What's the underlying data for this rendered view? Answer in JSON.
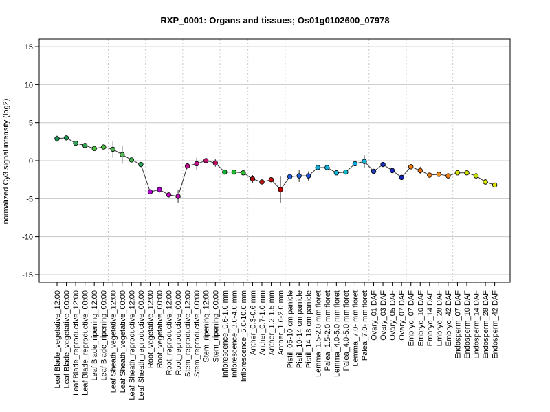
{
  "chart_data": {
    "type": "line",
    "title": "RXP_0001: Organs and tissues; Os01g0102600_07978",
    "xlabel": "",
    "ylabel": "normalized Cy3 signal intensity (log2)",
    "ylim": [
      -16,
      16
    ],
    "yticks": [
      -15,
      -10,
      -5,
      0,
      5,
      10,
      15
    ],
    "grid": true,
    "categories": [
      "Leaf Blade_vegetative_12:00",
      "Leaf Blade_vegetative_00:00",
      "Leaf Blade_reproductive_12:00",
      "Leaf Blade_reproductive_00:00",
      "Leaf Blade_ripening_12:00",
      "Leaf Blade_ripening_00:00",
      "Leaf Sheath_vegetative_12:00",
      "Leaf Sheath_vegetative_00:00",
      "Leaf Sheath_reproductive_12:00",
      "Leaf Sheath_reproductive_00:00",
      "Root_vegetative_12:00",
      "Root_vegetative_00:00",
      "Root_reproductive_12:00",
      "Root_reproductive_00:00",
      "Stem_reproductive_12:00",
      "Stem_reproductive_00:00",
      "Stem_ripening_12:00",
      "Stem_ripening_00:00",
      "Inflorescence_0.6-1.0 mm",
      "Inflorescence_3.0-4.0 mm",
      "Inflorescence_5.0-10.0 mm",
      "Anther_0.3-0.6 mm",
      "Anther_0.7-1.0 mm",
      "Anther_1.2-1.5 mm",
      "Anther_1.6-2.0 mm",
      "Pistil_05-10 cm panicle",
      "Pistil_10-14 cm panicle",
      "Pistil_14-18 cm panicle",
      "Lemma_1.5-2.0 mm floret",
      "Palea_1.5-2.0 mm floret",
      "Lemma_4.0-5.0 mm floret",
      "Palea_4.0-5.0 mm floret",
      "Lemma_7.0- mm floret",
      "Palea_7.0- mm floret",
      "Ovary_01 DAF",
      "Ovary_03 DAF",
      "Ovary_05 DAF",
      "Ovary_07 DAF",
      "Embryo_07 DAF",
      "Embryo_10 DAF",
      "Embryo_14 DAF",
      "Embryo_28 DAF",
      "Embryo_42 DAF",
      "Endosperm_07 DAF",
      "Endosperm_10 DAF",
      "Endosperm_14 DAF",
      "Endosperm_28 DAF",
      "Endosperm_42 DAF"
    ],
    "values": [
      2.9,
      3.0,
      2.3,
      2.0,
      1.6,
      1.8,
      1.5,
      0.8,
      0.1,
      -0.5,
      -4.1,
      -3.8,
      -4.5,
      -4.7,
      -0.7,
      -0.4,
      0.0,
      -0.3,
      -1.5,
      -1.5,
      -1.6,
      -2.4,
      -2.8,
      -2.5,
      -3.8,
      -2.1,
      -2.0,
      -2.0,
      -0.9,
      -0.9,
      -1.6,
      -1.5,
      -0.4,
      -0.1,
      -1.4,
      -0.5,
      -1.3,
      -2.2,
      -0.8,
      -1.3,
      -1.9,
      -1.8,
      -2.0,
      -1.6,
      -1.6,
      -2.0,
      -2.8,
      -3.2
    ],
    "errors": [
      0.4,
      0.3,
      0.2,
      0.3,
      0.2,
      0.2,
      1.1,
      1.2,
      0.2,
      0.2,
      0.2,
      0.4,
      0.2,
      0.8,
      0.2,
      0.8,
      0.3,
      0.5,
      0.1,
      0.1,
      0.1,
      0.5,
      0.3,
      0.3,
      1.7,
      0.1,
      0.8,
      0.6,
      0.3,
      0.1,
      0.1,
      0.1,
      0.2,
      0.8,
      0.2,
      0.1,
      0.2,
      0.3,
      0.2,
      0.5,
      0.2,
      0.2,
      0.2,
      0.1,
      0.1,
      0.1,
      0.4,
      0.2
    ],
    "colors": [
      "#1a9850",
      "#1a9850",
      "#31a354",
      "#31a354",
      "#4cbf3c",
      "#4cbf3c",
      "#4caf50",
      "#5cb85c",
      "#3ab54a",
      "#2ca25f",
      "#b000d0",
      "#b000d0",
      "#c000c0",
      "#c010b0",
      "#c0108a",
      "#c0108a",
      "#c01070",
      "#c01060",
      "#10b030",
      "#20b830",
      "#30c030",
      "#b01010",
      "#b81818",
      "#c01010",
      "#c00000",
      "#2060e0",
      "#1f60e0",
      "#2050d8",
      "#10a8d0",
      "#10b0d8",
      "#10b8d8",
      "#10b8c8",
      "#10a8e0",
      "#10b8e0",
      "#2040c0",
      "#1830c0",
      "#1828b8",
      "#1020a8",
      "#f07800",
      "#f07000",
      "#f08010",
      "#f09020",
      "#f08010",
      "#d8e000",
      "#d0e000",
      "#c8e000",
      "#d8e800",
      "#d8e000"
    ]
  }
}
